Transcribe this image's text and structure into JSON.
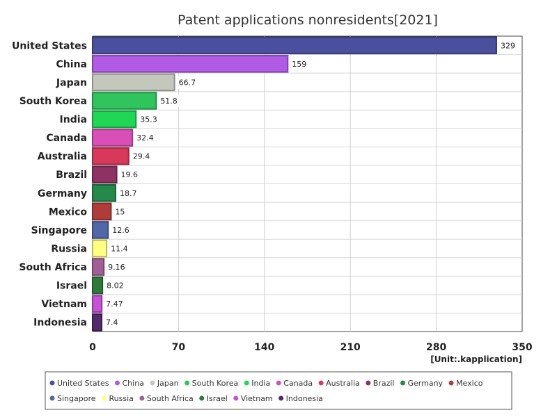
{
  "chart_data": {
    "type": "bar",
    "orientation": "horizontal",
    "title": "Patent applications nonresidents[2021]",
    "unit_label": "[Unit:.kapplication]",
    "xlim": [
      0,
      350
    ],
    "x_ticks": [
      0,
      70,
      140,
      210,
      280,
      350
    ],
    "grid": true,
    "legend_position": "bottom",
    "categories": [
      "United States",
      "China",
      "Japan",
      "South Korea",
      "India",
      "Canada",
      "Australia",
      "Brazil",
      "Germany",
      "Mexico",
      "Singapore",
      "Russia",
      "South Africa",
      "Israel",
      "Vietnam",
      "Indonesia"
    ],
    "values": [
      329,
      159,
      66.7,
      51.8,
      35.3,
      32.4,
      29.4,
      19.6,
      18.7,
      15,
      12.6,
      11.4,
      9.16,
      8.02,
      7.47,
      7.4
    ],
    "value_labels": [
      "329",
      "159",
      "66.7",
      "51.8",
      "35.3",
      "32.4",
      "29.4",
      "19.6",
      "18.7",
      "15",
      "12.6",
      "11.4",
      "9.16",
      "8.02",
      "7.47",
      "7.4"
    ],
    "colors": [
      "#4a4f9e",
      "#b15ae6",
      "#c4c8bc",
      "#2fc45c",
      "#1fd655",
      "#d94fb8",
      "#d8395a",
      "#8d3263",
      "#24894a",
      "#b03c3a",
      "#5067a8",
      "#ffff80",
      "#a25f96",
      "#2d7a3b",
      "#c84fd8",
      "#542a6e"
    ]
  }
}
